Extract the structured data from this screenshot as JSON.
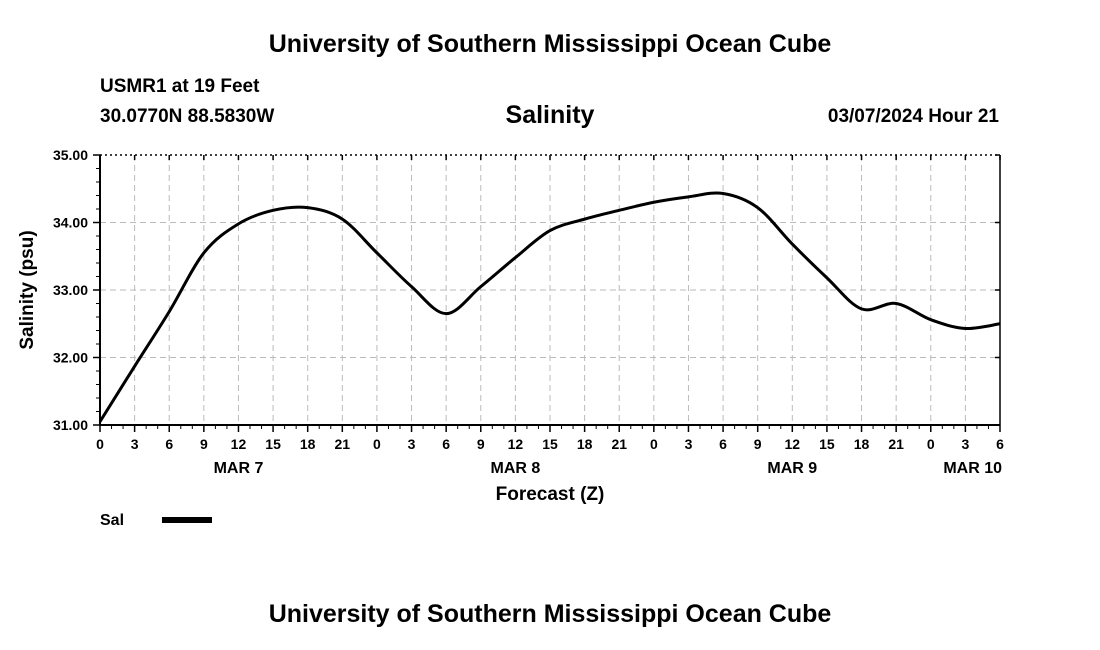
{
  "header": {
    "title": "University of Southern Mississippi Ocean Cube",
    "station": "USMR1 at 19 Feet",
    "coords": "30.0770N  88.5830W",
    "parameter": "Salinity",
    "datetime": "03/07/2024 Hour 21"
  },
  "footer": {
    "title": "University of Southern Mississippi Ocean Cube"
  },
  "colors": {
    "line": "#000000",
    "grid": "#bbbbbb",
    "background": "#ffffff"
  },
  "chart_data": {
    "type": "line",
    "title": "Salinity",
    "xlabel": "Forecast (Z)",
    "ylabel": "Salinity (psu)",
    "xlim": [
      0,
      78
    ],
    "ylim": [
      31.0,
      35.0
    ],
    "x_tick_labels": [
      "0",
      "3",
      "6",
      "9",
      "12",
      "15",
      "18",
      "21",
      "0",
      "3",
      "6",
      "9",
      "12",
      "15",
      "18",
      "21",
      "0",
      "3",
      "6",
      "9",
      "12",
      "15",
      "18",
      "21",
      "0",
      "3",
      "6"
    ],
    "y_tick_labels": [
      "31.00",
      "32.00",
      "33.00",
      "34.00",
      "35.00"
    ],
    "date_labels": [
      {
        "label": "MAR 7",
        "hour": 12
      },
      {
        "label": "MAR 8",
        "hour": 36
      },
      {
        "label": "MAR 9",
        "hour": 60
      },
      {
        "label": "MAR 10",
        "hour": 78
      }
    ],
    "grid": true,
    "legend": [
      {
        "name": "Sal",
        "position": "bottom-left"
      }
    ],
    "series": [
      {
        "name": "Sal",
        "x": [
          0,
          3,
          6,
          9,
          12,
          15,
          18,
          21,
          24,
          27,
          30,
          33,
          36,
          39,
          42,
          45,
          48,
          51,
          54,
          57,
          60,
          63,
          66,
          69,
          72,
          75,
          78
        ],
        "y": [
          31.05,
          31.87,
          32.68,
          33.55,
          33.98,
          34.18,
          34.22,
          34.05,
          33.55,
          33.05,
          32.65,
          33.05,
          33.48,
          33.88,
          34.05,
          34.18,
          34.3,
          34.38,
          34.43,
          34.22,
          33.68,
          33.18,
          32.72,
          32.8,
          32.56,
          32.43,
          32.5
        ]
      }
    ]
  }
}
